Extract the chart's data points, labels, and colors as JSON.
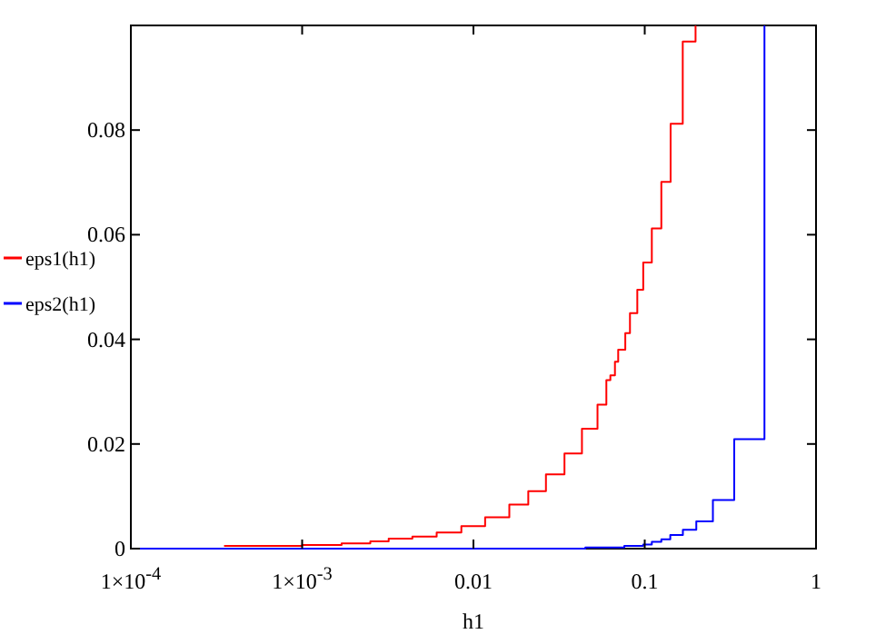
{
  "chart_data": {
    "type": "step",
    "xlabel": "h1",
    "log": "x",
    "legend": "left",
    "grid": false,
    "xlim": [
      0.0001,
      1
    ],
    "ylim": [
      0,
      0.1
    ],
    "xticks": [
      {
        "value": 0.0001,
        "label": "1×10$^{-4}$"
      },
      {
        "value": 0.001,
        "label": "1×10$^{-3}$"
      },
      {
        "value": 0.01,
        "label": "0.01"
      },
      {
        "value": 0.1,
        "label": "0.1"
      },
      {
        "value": 1,
        "label": "1"
      }
    ],
    "yticks": [
      0,
      0.02,
      0.04,
      0.06,
      0.08
    ],
    "series": [
      {
        "name": "eps1(h1)",
        "color": "#ff0000",
        "x": [
          0.00035,
          0.001,
          0.0017,
          0.0025,
          0.0032,
          0.0044,
          0.0061,
          0.0085,
          0.0117,
          0.0162,
          0.0209,
          0.0265,
          0.034,
          0.043,
          0.053,
          0.0597,
          0.063,
          0.067,
          0.07,
          0.077,
          0.082,
          0.0905,
          0.098,
          0.11,
          0.125,
          0.1416,
          0.1667,
          0.198
        ],
        "values": [
          0.0005,
          0.0007,
          0.001,
          0.0014,
          0.0019,
          0.0023,
          0.0031,
          0.0043,
          0.006,
          0.0084,
          0.011,
          0.0142,
          0.0182,
          0.0229,
          0.0275,
          0.0322,
          0.0331,
          0.0357,
          0.038,
          0.0412,
          0.045,
          0.0495,
          0.0547,
          0.0612,
          0.0701,
          0.0812,
          0.0969,
          0.1
        ]
      },
      {
        "name": "eps2(h1)",
        "color": "#0000ff",
        "x": [
          0.0001,
          0.045,
          0.076,
          0.098,
          0.11,
          0.125,
          0.141,
          0.167,
          0.2,
          0.25,
          0.333,
          0.5
        ],
        "values": [
          0,
          0.0002,
          0.0005,
          0.0008,
          0.0013,
          0.0018,
          0.0026,
          0.0036,
          0.0052,
          0.0093,
          0.0209,
          0.1
        ]
      }
    ]
  }
}
